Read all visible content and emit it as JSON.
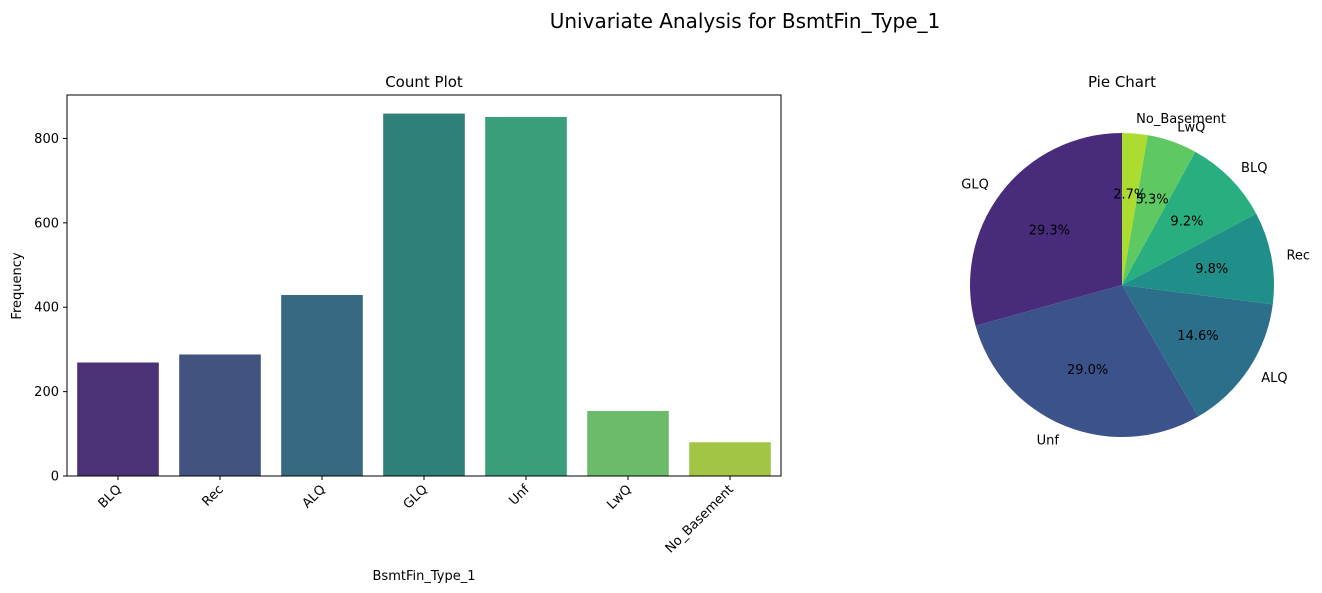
{
  "figure": {
    "suptitle": "Univariate Analysis for BsmtFin_Type_1"
  },
  "chart_data": [
    {
      "type": "bar",
      "title": "Count Plot",
      "xlabel": "BsmtFin_Type_1",
      "ylabel": "Frequency",
      "ylim": [
        0,
        903
      ],
      "yticks": [
        0,
        200,
        400,
        600,
        800
      ],
      "categories": [
        "BLQ",
        "Rec",
        "ALQ",
        "GLQ",
        "Unf",
        "LwQ",
        "No_Basement"
      ],
      "values": [
        269,
        288,
        429,
        859,
        851,
        154,
        80
      ],
      "colors": [
        "#4b3175",
        "#43537f",
        "#376a81",
        "#2e8078",
        "#3a9e7b",
        "#6cbb6b",
        "#a2c545"
      ],
      "grid": false
    },
    {
      "type": "pie",
      "title": "Pie Chart",
      "labels": [
        "GLQ",
        "Unf",
        "ALQ",
        "Rec",
        "BLQ",
        "LwQ",
        "No_Basement"
      ],
      "values": [
        29.3,
        29.0,
        14.6,
        9.8,
        9.2,
        5.3,
        2.7
      ],
      "pct_labels": [
        "29.3%",
        "29.0%",
        "14.6%",
        "9.8%",
        "9.2%",
        "5.3%",
        "2.7%"
      ],
      "colors": [
        "#482c7b",
        "#3b528a",
        "#2b6f8a",
        "#208f8a",
        "#28ae7f",
        "#5ec962",
        "#addc30"
      ],
      "start_angle": 90,
      "direction": "counterclockwise"
    }
  ]
}
